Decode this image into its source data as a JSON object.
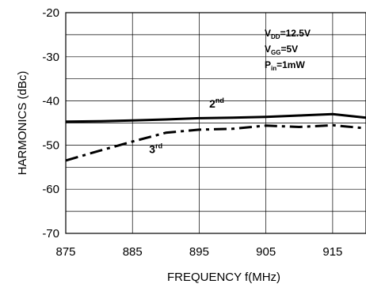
{
  "chart_data": {
    "type": "line",
    "title": "",
    "xlabel": "FREQUENCY f(MHz)",
    "ylabel": "HARMONICS (dBc)",
    "xlim": [
      875,
      920
    ],
    "ylim": [
      -70,
      -20
    ],
    "x_ticks": [
      875,
      885,
      895,
      905,
      915
    ],
    "x_tick_labels": [
      "875",
      "885",
      "895",
      "905",
      "915"
    ],
    "y_ticks": [
      -20,
      -30,
      -40,
      -50,
      -60,
      -70
    ],
    "y_tick_labels": [
      "-20",
      "-30",
      "-40",
      "-50",
      "-60",
      "-70"
    ],
    "grid": true,
    "conditions": [
      {
        "main": "V",
        "sub": "DD",
        "rest": "=12.5V"
      },
      {
        "main": "V",
        "sub": "GG",
        "rest": "=5V"
      },
      {
        "main": "P",
        "sub": "in",
        "rest": "=1mW"
      }
    ],
    "series": [
      {
        "name": "2nd",
        "label_main": "2",
        "label_sup": "nd",
        "style": "solid",
        "color": "#000000",
        "x": [
          875,
          880,
          885,
          890,
          895,
          900,
          905,
          910,
          915,
          920
        ],
        "y": [
          -44.7,
          -44.6,
          -44.4,
          -44.2,
          -43.9,
          -43.8,
          -43.6,
          -43.3,
          -43.0,
          -43.8
        ]
      },
      {
        "name": "3rd",
        "label_main": "3",
        "label_sup": "rd",
        "style": "dash-dot",
        "color": "#000000",
        "x": [
          875,
          880,
          885,
          890,
          895,
          900,
          905,
          910,
          915,
          920
        ],
        "y": [
          -53.5,
          -51.3,
          -49.2,
          -47.2,
          -46.5,
          -46.3,
          -45.6,
          -45.9,
          -45.5,
          -46.2
        ]
      }
    ]
  }
}
